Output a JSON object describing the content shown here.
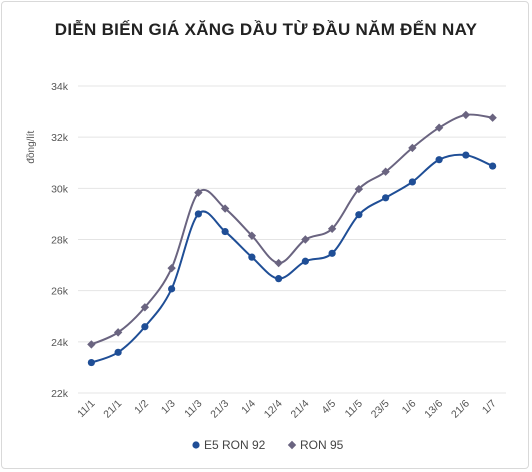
{
  "title": "DIỄN BIẾN GIÁ XĂNG DẦU TỪ ĐẦU NĂM ĐẾN NAY",
  "chart_data": {
    "type": "line",
    "title": "DIỄN BIẾN GIÁ XĂNG DẦU TỪ ĐẦU NĂM ĐẾN NAY",
    "xlabel": "",
    "ylabel": "đồng/lít",
    "categories": [
      "11/1",
      "21/1",
      "1/2",
      "1/3",
      "11/3",
      "21/3",
      "1/4",
      "12/4",
      "21/4",
      "4/5",
      "11/5",
      "23/5",
      "1/6",
      "13/6",
      "21/6",
      "1/7"
    ],
    "ylim": [
      22000,
      34000
    ],
    "yticks": [
      22000,
      24000,
      26000,
      28000,
      30000,
      32000,
      34000
    ],
    "ytick_labels": [
      "22k",
      "24k",
      "26k",
      "28k",
      "30k",
      "32k",
      "34k"
    ],
    "grid": true,
    "legend": "bottom",
    "series": [
      {
        "name": "E5 RON 92",
        "color": "#1f4e96",
        "marker": "circle",
        "values": [
          23190,
          23590,
          24590,
          26070,
          29000,
          28310,
          27310,
          26470,
          27150,
          27460,
          28970,
          29630,
          30250,
          31120,
          31300,
          30870
        ]
      },
      {
        "name": "RON 95",
        "color": "#6a6480",
        "marker": "diamond",
        "values": [
          23900,
          24370,
          25350,
          26880,
          29830,
          29210,
          28150,
          27080,
          28000,
          28420,
          29970,
          30650,
          31580,
          32370,
          32870,
          32760
        ]
      }
    ]
  }
}
